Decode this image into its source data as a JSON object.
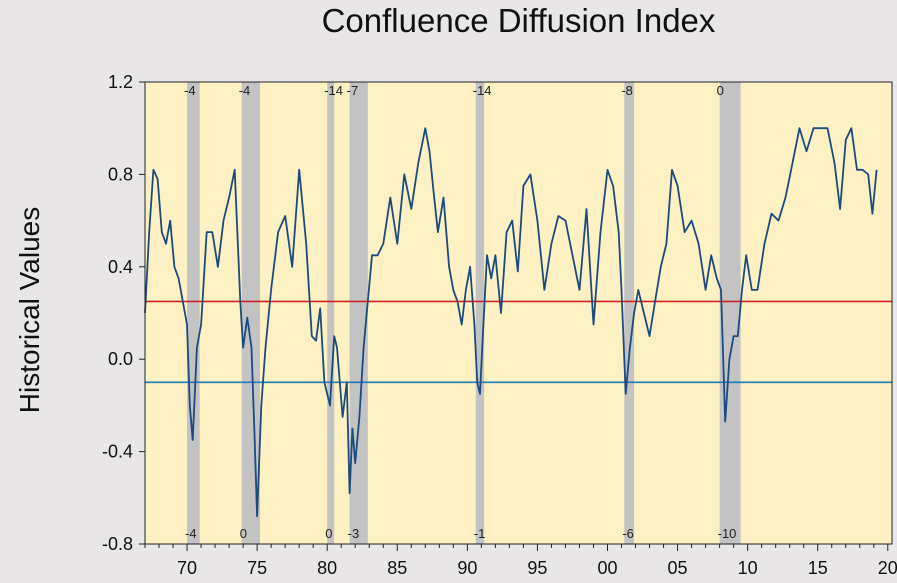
{
  "chart_data": {
    "type": "line",
    "title": "Confluence Diffusion Index",
    "xlabel": "",
    "ylabel": "Historical Values",
    "xlim": [
      1967,
      2020.3
    ],
    "ylim": [
      -0.8,
      1.2
    ],
    "x_ticks": [
      1970,
      1975,
      1980,
      1985,
      1990,
      1995,
      2000,
      2005,
      2010,
      2015,
      2020
    ],
    "x_tick_labels": [
      "70",
      "75",
      "80",
      "85",
      "90",
      "95",
      "00",
      "05",
      "10",
      "15",
      "20"
    ],
    "y_ticks": [
      -0.8,
      -0.4,
      0.0,
      0.4,
      0.8,
      1.2
    ],
    "y_tick_labels": [
      "-0.8",
      "-0.4",
      "0.0",
      "0.4",
      "0.8",
      "1.2"
    ],
    "grid": false,
    "legend": "none",
    "colors": {
      "plot_bg": "#fdf1c3",
      "recession": "#c3c3c3",
      "line": "#1b4a7e",
      "upper_threshold": "#d42020",
      "lower_threshold": "#1f7ab8",
      "page_bg": "#e8e6e6"
    },
    "thresholds": [
      {
        "value": 0.25,
        "color": "#d42020"
      },
      {
        "value": -0.1,
        "color": "#1f7ab8"
      }
    ],
    "recessions": [
      {
        "start": 1970.0,
        "end": 1970.9,
        "top_label": "-4",
        "bottom_label": "-4"
      },
      {
        "start": 1973.9,
        "end": 1975.2,
        "top_label": "-4",
        "bottom_label": "0"
      },
      {
        "start": 1980.0,
        "end": 1980.5,
        "top_label": "-14",
        "bottom_label": "0"
      },
      {
        "start": 1981.6,
        "end": 1982.9,
        "top_label": "-7",
        "bottom_label": "-3"
      },
      {
        "start": 1990.6,
        "end": 1991.2,
        "top_label": "-14",
        "bottom_label": "-1"
      },
      {
        "start": 2001.2,
        "end": 2001.9,
        "top_label": "-8",
        "bottom_label": "-6"
      },
      {
        "start": 2008.0,
        "end": 2009.5,
        "top_label": "0",
        "bottom_label": "-10"
      }
    ],
    "series": [
      {
        "x": [
          1967.0,
          1967.3,
          1967.6,
          1967.9,
          1968.2,
          1968.5,
          1968.8,
          1969.1,
          1969.4,
          1969.7,
          1970.0,
          1970.2,
          1970.4,
          1970.7,
          1971.0,
          1971.4,
          1971.8,
          1972.2,
          1972.6,
          1973.0,
          1973.4,
          1973.8,
          1974.0,
          1974.3,
          1974.6,
          1974.8,
          1975.0,
          1975.3,
          1975.6,
          1976.0,
          1976.5,
          1977.0,
          1977.5,
          1978.0,
          1978.5,
          1978.9,
          1979.2,
          1979.5,
          1979.8,
          1980.0,
          1980.2,
          1980.5,
          1980.7,
          1980.9,
          1981.1,
          1981.4,
          1981.6,
          1981.8,
          1982.0,
          1982.3,
          1982.6,
          1982.9,
          1983.2,
          1983.6,
          1984.0,
          1984.5,
          1985.0,
          1985.5,
          1986.0,
          1986.5,
          1987.0,
          1987.3,
          1987.6,
          1987.9,
          1988.3,
          1988.7,
          1989.0,
          1989.3,
          1989.6,
          1989.9,
          1990.2,
          1990.5,
          1990.7,
          1990.9,
          1991.1,
          1991.4,
          1991.7,
          1992.0,
          1992.4,
          1992.8,
          1993.2,
          1993.6,
          1994.0,
          1994.5,
          1995.0,
          1995.5,
          1996.0,
          1996.5,
          1997.0,
          1997.5,
          1998.0,
          1998.5,
          1999.0,
          1999.5,
          2000.0,
          2000.4,
          2000.8,
          2001.0,
          2001.3,
          2001.6,
          2001.9,
          2002.2,
          2002.6,
          2003.0,
          2003.4,
          2003.8,
          2004.2,
          2004.6,
          2005.0,
          2005.5,
          2006.0,
          2006.5,
          2007.0,
          2007.4,
          2007.8,
          2008.1,
          2008.4,
          2008.7,
          2009.0,
          2009.3,
          2009.6,
          2009.9,
          2010.3,
          2010.7,
          2011.2,
          2011.7,
          2012.2,
          2012.7,
          2013.2,
          2013.7,
          2014.2,
          2014.7,
          2015.2,
          2015.7,
          2016.2,
          2016.6,
          2017.0,
          2017.4,
          2017.8,
          2018.2,
          2018.6,
          2018.9,
          2019.2
        ],
        "y": [
          0.2,
          0.55,
          0.82,
          0.78,
          0.55,
          0.5,
          0.6,
          0.4,
          0.35,
          0.25,
          0.15,
          -0.2,
          -0.35,
          0.05,
          0.15,
          0.55,
          0.55,
          0.4,
          0.6,
          0.7,
          0.82,
          0.25,
          0.05,
          0.18,
          0.05,
          -0.3,
          -0.68,
          -0.2,
          0.05,
          0.3,
          0.55,
          0.62,
          0.4,
          0.82,
          0.5,
          0.1,
          0.08,
          0.22,
          -0.1,
          -0.15,
          -0.2,
          0.1,
          0.05,
          -0.1,
          -0.25,
          -0.1,
          -0.58,
          -0.3,
          -0.45,
          -0.25,
          0.05,
          0.25,
          0.45,
          0.45,
          0.5,
          0.7,
          0.5,
          0.8,
          0.65,
          0.85,
          1.0,
          0.9,
          0.72,
          0.55,
          0.7,
          0.4,
          0.3,
          0.25,
          0.15,
          0.3,
          0.4,
          0.15,
          -0.1,
          -0.15,
          0.1,
          0.45,
          0.35,
          0.45,
          0.2,
          0.55,
          0.6,
          0.38,
          0.75,
          0.8,
          0.6,
          0.3,
          0.5,
          0.62,
          0.6,
          0.45,
          0.3,
          0.65,
          0.15,
          0.55,
          0.82,
          0.75,
          0.55,
          0.3,
          -0.15,
          0.05,
          0.2,
          0.3,
          0.2,
          0.1,
          0.25,
          0.4,
          0.5,
          0.82,
          0.75,
          0.55,
          0.6,
          0.5,
          0.3,
          0.45,
          0.35,
          0.3,
          -0.27,
          0.0,
          0.1,
          0.1,
          0.3,
          0.45,
          0.3,
          0.3,
          0.5,
          0.63,
          0.6,
          0.7,
          0.85,
          1.0,
          0.9,
          1.0,
          1.0,
          1.0,
          0.85,
          0.65,
          0.95,
          1.0,
          0.82,
          0.82,
          0.8,
          0.63,
          0.82
        ]
      }
    ]
  }
}
